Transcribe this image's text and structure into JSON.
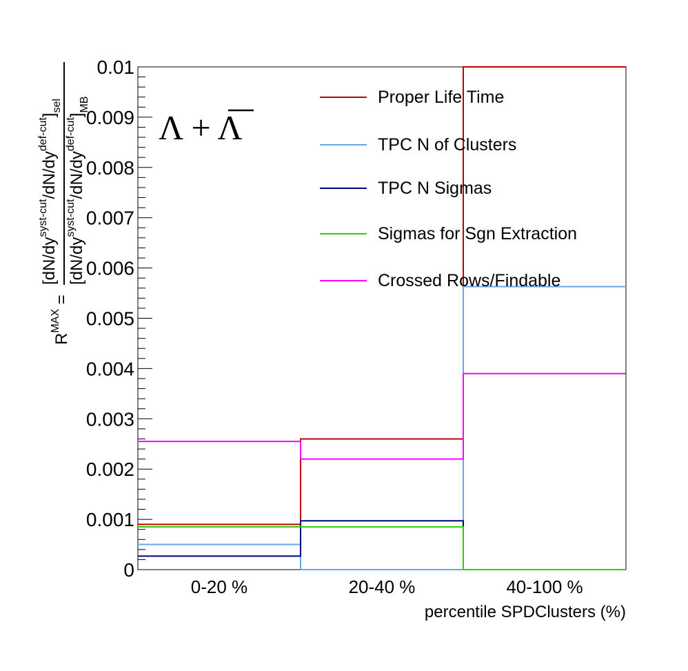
{
  "chart_data": {
    "type": "step",
    "annotation": "Λ + Λ",
    "categories": [
      "0-20 %",
      "20-40 %",
      "40-100 %"
    ],
    "xlabel": "percentile SPDClusters (%)",
    "ylabel": {
      "prefix": "R",
      "prefix_sup": "MAX",
      "equals": " = ",
      "numerator": "[dN/dy",
      "num_sup1": "syst-cut",
      "num_mid": "/dN/dy",
      "num_sup2": "def-cut",
      "num_end": "]",
      "num_sub": "sel",
      "denominator": "[dN/dy",
      "den_sup1": "syst-cut",
      "den_mid": "/dN/dy",
      "den_sup2": "def-cut",
      "den_end": "]",
      "den_sub": "MB"
    },
    "ylim": [
      0,
      0.01
    ],
    "yticks": [
      "0",
      "0.001",
      "0.002",
      "0.003",
      "0.004",
      "0.005",
      "0.006",
      "0.007",
      "0.008",
      "0.009",
      "0.01"
    ],
    "ytick_values": [
      0,
      0.001,
      0.002,
      0.003,
      0.004,
      0.005,
      0.006,
      0.007,
      0.008,
      0.009,
      0.01
    ],
    "grid": false,
    "legend_position": "top-right",
    "series": [
      {
        "name": "Proper Life Time",
        "color": "#c00000",
        "values": [
          0.0009,
          0.0026,
          0.01
        ]
      },
      {
        "name": "TPC N of Clusters",
        "color": "#6aa6f0",
        "values": [
          0.0005,
          0.0,
          0.00563
        ]
      },
      {
        "name": "TPC N Sigmas",
        "color": "#000080",
        "values": [
          0.00027,
          0.00097,
          0.0
        ]
      },
      {
        "name": "Sigmas for Sgn Extraction",
        "color": "#33cc00",
        "values": [
          0.00085,
          0.00085,
          0.0
        ]
      },
      {
        "name": "Crossed Rows/Findable",
        "color": "#ff00ff",
        "values": [
          0.00255,
          0.0022,
          0.0039
        ]
      }
    ]
  }
}
